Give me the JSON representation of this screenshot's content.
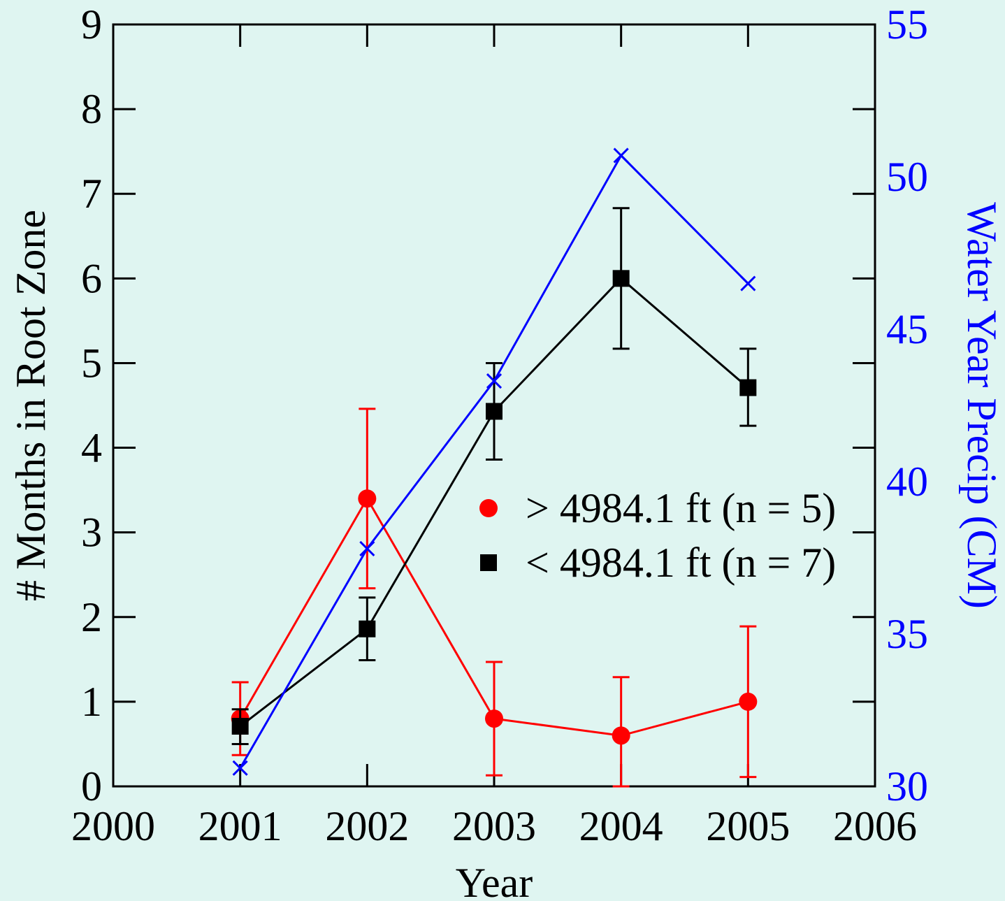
{
  "chart_data": {
    "type": "line",
    "title": "",
    "xlabel": "Year",
    "ylabel": "# Months in Root Zone",
    "y2label": "Water Year Precip (CM)",
    "xlim": [
      2000,
      2006
    ],
    "ylim": [
      0,
      9
    ],
    "y2lim": [
      30,
      55
    ],
    "x_ticks": [
      2000,
      2001,
      2002,
      2003,
      2004,
      2005,
      2006
    ],
    "y_ticks": [
      0,
      1,
      2,
      3,
      4,
      5,
      6,
      7,
      8,
      9
    ],
    "y2_ticks": [
      30,
      35,
      40,
      45,
      50,
      55
    ],
    "grid": false,
    "legend_position": "center-right",
    "series": [
      {
        "name": "> 4984.1 ft (n = 5)",
        "axis": "left",
        "marker": "circle",
        "color": "#ff0000",
        "x": [
          2001,
          2002,
          2003,
          2004,
          2005
        ],
        "y": [
          0.8,
          3.4,
          0.8,
          0.6,
          1.0
        ],
        "err_low": [
          0.37,
          2.34,
          0.13,
          0.0,
          0.11
        ],
        "err_high": [
          1.23,
          4.46,
          1.47,
          1.29,
          1.89
        ]
      },
      {
        "name": "< 4984.1 ft (n = 7)",
        "axis": "left",
        "marker": "square",
        "color": "#000000",
        "x": [
          2001,
          2002,
          2003,
          2004,
          2005
        ],
        "y": [
          0.71,
          1.86,
          4.43,
          6.0,
          4.71
        ],
        "err_low": [
          0.5,
          1.49,
          3.86,
          5.17,
          4.26
        ],
        "err_high": [
          0.91,
          2.23,
          5.0,
          6.83,
          5.17
        ]
      },
      {
        "name": "",
        "axis": "right",
        "marker": "x",
        "color": "#0000ff",
        "x": [
          2001,
          2002,
          2003,
          2004,
          2005
        ],
        "y": [
          30.6,
          37.8,
          43.3,
          50.7,
          46.5
        ]
      }
    ]
  }
}
